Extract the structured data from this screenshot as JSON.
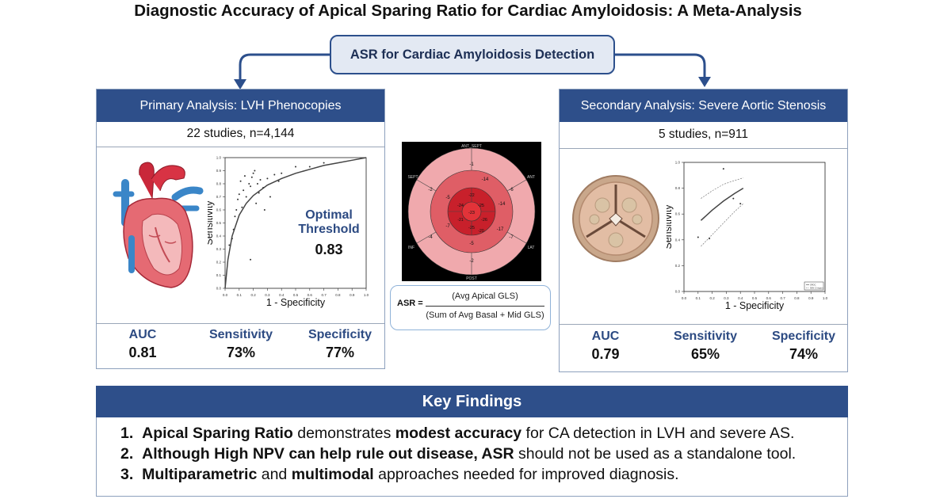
{
  "title": "Diagnostic Accuracy of Apical Sparing Ratio for Cardiac Amyloidosis: A Meta-Analysis",
  "center_box": "ASR for Cardiac Amyloidosis Detection",
  "primary": {
    "header": "Primary Analysis: LVH Phenocopies",
    "studies": "22 studies, n=4,144",
    "optimal_threshold_label_1": "Optimal",
    "optimal_threshold_label_2": "Threshold",
    "optimal_threshold_value": "0.83",
    "metrics": [
      {
        "label": "AUC",
        "value": "0.81"
      },
      {
        "label": "Sensitivity",
        "value": "73%"
      },
      {
        "label": "Specificity",
        "value": "77%"
      }
    ]
  },
  "secondary": {
    "header": "Secondary Analysis: Severe Aortic Stenosis",
    "studies": "5 studies, n=911",
    "metrics": [
      {
        "label": "AUC",
        "value": "0.79"
      },
      {
        "label": "Sensitivity",
        "value": "65%"
      },
      {
        "label": "Specificity",
        "value": "74%"
      }
    ]
  },
  "chart_data": [
    {
      "type": "scatter",
      "xlabel": "1 - Specificity",
      "ylabel": "Sensitivity",
      "xlim": [
        0,
        1
      ],
      "ylim": [
        0,
        1
      ],
      "x_ticks": [
        "0.0",
        "0.1",
        "0.2",
        "0.3",
        "0.4",
        "0.5",
        "0.6",
        "0.7",
        "0.8",
        "0.9",
        "1.0"
      ],
      "y_ticks": [
        "0.0",
        "0.1",
        "0.2",
        "0.3",
        "0.4",
        "0.5",
        "0.6",
        "0.7",
        "0.8",
        "0.9",
        "1.0"
      ],
      "points": [
        [
          0.03,
          0.33
        ],
        [
          0.05,
          0.38
        ],
        [
          0.06,
          0.45
        ],
        [
          0.07,
          0.55
        ],
        [
          0.08,
          0.6
        ],
        [
          0.09,
          0.68
        ],
        [
          0.1,
          0.72
        ],
        [
          0.11,
          0.82
        ],
        [
          0.12,
          0.62
        ],
        [
          0.13,
          0.75
        ],
        [
          0.14,
          0.86
        ],
        [
          0.15,
          0.7
        ],
        [
          0.17,
          0.8
        ],
        [
          0.18,
          0.78
        ],
        [
          0.19,
          0.85
        ],
        [
          0.2,
          0.88
        ],
        [
          0.21,
          0.9
        ],
        [
          0.22,
          0.65
        ],
        [
          0.23,
          0.8
        ],
        [
          0.24,
          0.73
        ],
        [
          0.25,
          0.83
        ],
        [
          0.27,
          0.77
        ],
        [
          0.28,
          0.6
        ],
        [
          0.3,
          0.84
        ],
        [
          0.32,
          0.7
        ],
        [
          0.35,
          0.87
        ],
        [
          0.38,
          0.82
        ],
        [
          0.4,
          0.88
        ],
        [
          0.18,
          0.22
        ],
        [
          0.5,
          0.93
        ],
        [
          0.6,
          0.93
        ],
        [
          0.7,
          0.96
        ]
      ],
      "curve": [
        [
          0.0,
          0.0
        ],
        [
          0.02,
          0.22
        ],
        [
          0.05,
          0.4
        ],
        [
          0.1,
          0.56
        ],
        [
          0.15,
          0.65
        ],
        [
          0.2,
          0.71
        ],
        [
          0.3,
          0.79
        ],
        [
          0.4,
          0.84
        ],
        [
          0.5,
          0.88
        ],
        [
          0.6,
          0.91
        ],
        [
          0.7,
          0.94
        ],
        [
          0.8,
          0.96
        ],
        [
          0.9,
          0.98
        ],
        [
          1.0,
          1.0
        ]
      ]
    },
    {
      "type": "scatter",
      "xlabel": "1 - Specificity",
      "ylabel": "Sensitivity",
      "xlim": [
        0,
        1
      ],
      "ylim": [
        0,
        1
      ],
      "x_ticks": [
        "0.0",
        "0.1",
        "0.2",
        "0.3",
        "0.4",
        "0.5",
        "0.6",
        "0.7",
        "0.8",
        "0.9",
        "1.0"
      ],
      "y_ticks": [
        "0.0",
        "0.2",
        "0.4",
        "0.6",
        "0.8",
        "1.0"
      ],
      "points": [
        [
          0.1,
          0.42
        ],
        [
          0.18,
          0.41
        ],
        [
          0.28,
          0.95
        ],
        [
          0.35,
          0.72
        ],
        [
          0.4,
          0.68
        ]
      ],
      "curve": [
        [
          0.12,
          0.55
        ],
        [
          0.2,
          0.63
        ],
        [
          0.28,
          0.7
        ],
        [
          0.36,
          0.76
        ],
        [
          0.42,
          0.8
        ]
      ],
      "ci_upper": [
        [
          0.12,
          0.72
        ],
        [
          0.2,
          0.78
        ],
        [
          0.28,
          0.83
        ],
        [
          0.36,
          0.86
        ],
        [
          0.42,
          0.88
        ]
      ],
      "ci_lower": [
        [
          0.12,
          0.35
        ],
        [
          0.2,
          0.44
        ],
        [
          0.28,
          0.53
        ],
        [
          0.36,
          0.62
        ],
        [
          0.42,
          0.68
        ]
      ],
      "legend_entries": [
        "SROC",
        "95% CI region"
      ]
    }
  ],
  "bullseye": {
    "labels": {
      "top": "ANT_SEPT",
      "top_right": "ANT",
      "right": "LAT",
      "bottom": "POST",
      "left": "INF",
      "top_left": "SEPT"
    },
    "basal_values": [
      "-1",
      "-6",
      "-7",
      "-2",
      "-4",
      "-2"
    ],
    "mid_values": [
      "-14",
      "-14",
      "-17",
      "-5",
      "-7",
      "-5"
    ],
    "apical_values": [
      "-25",
      "-26",
      "-25",
      "-24"
    ],
    "apex_value": "-23",
    "extra_values": [
      "-22",
      "-21",
      "-20"
    ]
  },
  "formula": {
    "lhs": "ASR =",
    "numerator": "(Avg Apical GLS)",
    "denominator": "(Sum of Avg Basal + Mid GLS)"
  },
  "key_findings": {
    "header": "Key Findings",
    "items": [
      {
        "num": "1.",
        "parts": [
          {
            "t": "Apical Sparing Ratio",
            "b": true
          },
          {
            "t": " demonstrates ",
            "b": false
          },
          {
            "t": "modest accuracy",
            "b": true
          },
          {
            "t": " for CA detection in LVH and severe AS.",
            "b": false
          }
        ]
      },
      {
        "num": "2.",
        "parts": [
          {
            "t": "Although High NPV can help rule out disease, ASR",
            "b": true
          },
          {
            "t": " should not be used as a standalone tool.",
            "b": false
          }
        ]
      },
      {
        "num": "3.",
        "parts": [
          {
            "t": "Multiparametric",
            "b": true
          },
          {
            "t": " and ",
            "b": false
          },
          {
            "t": "multimodal",
            "b": true
          },
          {
            "t": " approaches needed for improved diagnosis.",
            "b": false
          }
        ]
      }
    ]
  },
  "colors": {
    "accent": "#2e4f8a",
    "metric_label": "#2c4a82",
    "center_box_bg": "#e3e9f3"
  }
}
